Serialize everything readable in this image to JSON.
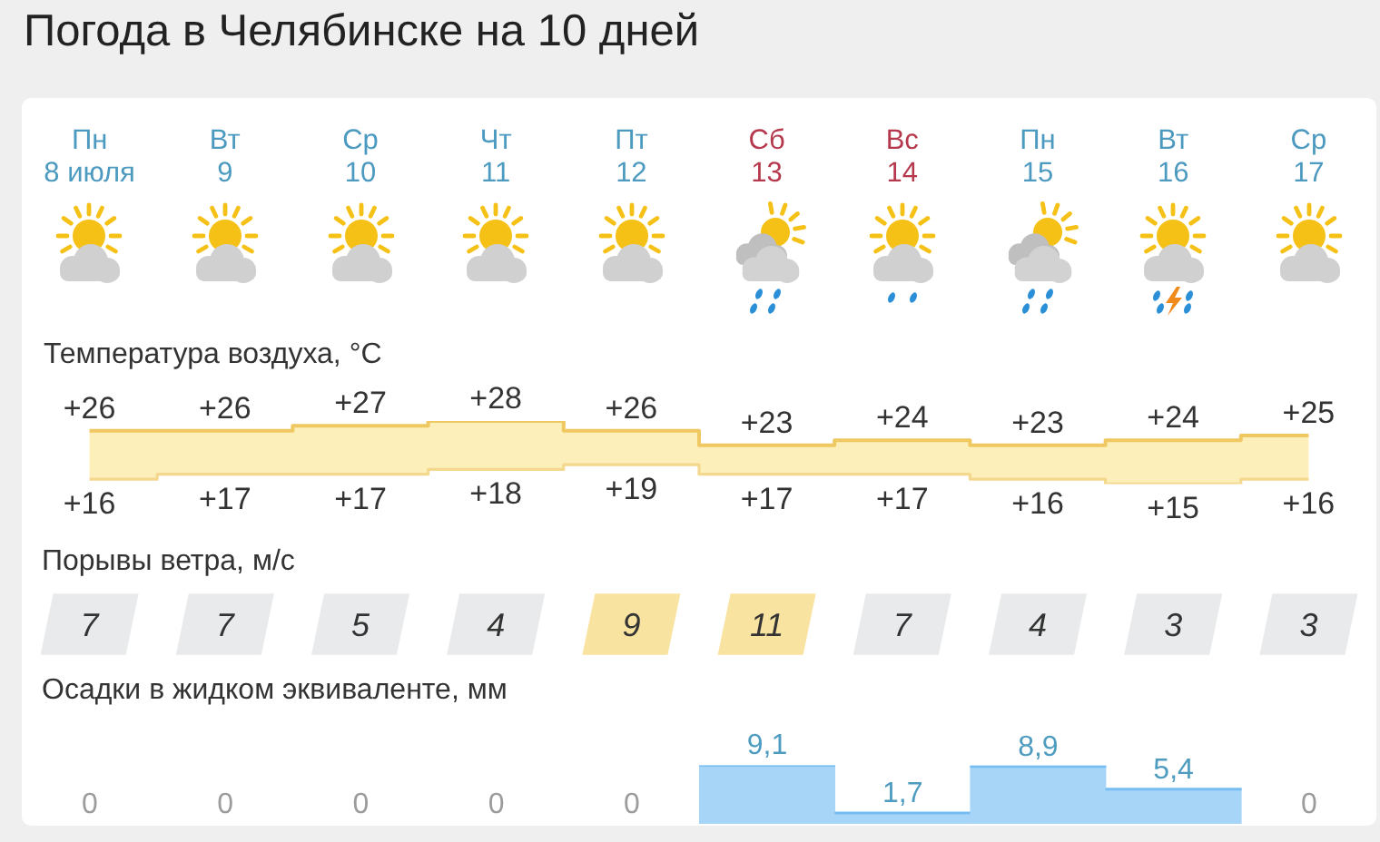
{
  "chart_data": [
    {
      "type": "step",
      "title": "Погода в Челябинске на 10 дней",
      "ylabel": "Температура воздуха, °C",
      "categories": [
        "Пн\n8 июля",
        "Вт\n9",
        "Ср\n10",
        "Чт\n11",
        "Пт\n12",
        "Сб\n13",
        "Вс\n14",
        "Пн\n15",
        "Вт\n16",
        "Ср\n17"
      ],
      "series": [
        {
          "values": [
            26,
            26,
            27,
            28,
            26,
            23,
            24,
            23,
            24,
            25
          ],
          "lower": [
            16,
            17,
            17,
            18,
            19,
            17,
            17,
            16,
            15,
            16
          ],
          "upper": [
            26,
            26,
            27,
            28,
            26,
            23,
            24,
            23,
            24,
            25
          ],
          "color": "#f0c862",
          "value_labels": [
            "+26",
            "+26",
            "+27",
            "+28",
            "+26",
            "+23",
            "+24",
            "+23",
            "+24",
            "+25"
          ]
        },
        {
          "values": [
            16,
            17,
            17,
            18,
            19,
            17,
            17,
            16,
            15,
            16
          ],
          "color": "#f3d88e",
          "value_labels": [
            "+16",
            "+17",
            "+17",
            "+18",
            "+19",
            "+17",
            "+17",
            "+16",
            "+15",
            "+16"
          ]
        }
      ]
    },
    {
      "type": "other",
      "title": "Порывы ветра, м/с",
      "values": [
        7,
        7,
        5,
        4,
        9,
        11,
        7,
        4,
        3,
        3
      ],
      "colors": [
        "#e8eaeb",
        "#e8eaeb",
        "#e8eaeb",
        "#e8eaeb",
        "#f8e3a1",
        "#f8e3a1",
        "#e8eaeb",
        "#e8eaeb",
        "#e8eaeb",
        "#e8eaeb"
      ],
      "data_labels": true
    },
    {
      "type": "bar",
      "title": "Осадки в жидком эквиваленте, мм",
      "categories": [
        null,
        null,
        null,
        null,
        null,
        null,
        null,
        null,
        null,
        null
      ],
      "values": [
        0,
        0,
        0,
        0,
        0,
        9.1,
        1.7,
        8.9,
        5.4,
        0
      ],
      "value_labels": [
        "0",
        "0",
        "0",
        "0",
        "0",
        "9,1",
        "1,7",
        "8,9",
        "5,4",
        "0"
      ],
      "color": "#a7d5f8"
    }
  ]
}
